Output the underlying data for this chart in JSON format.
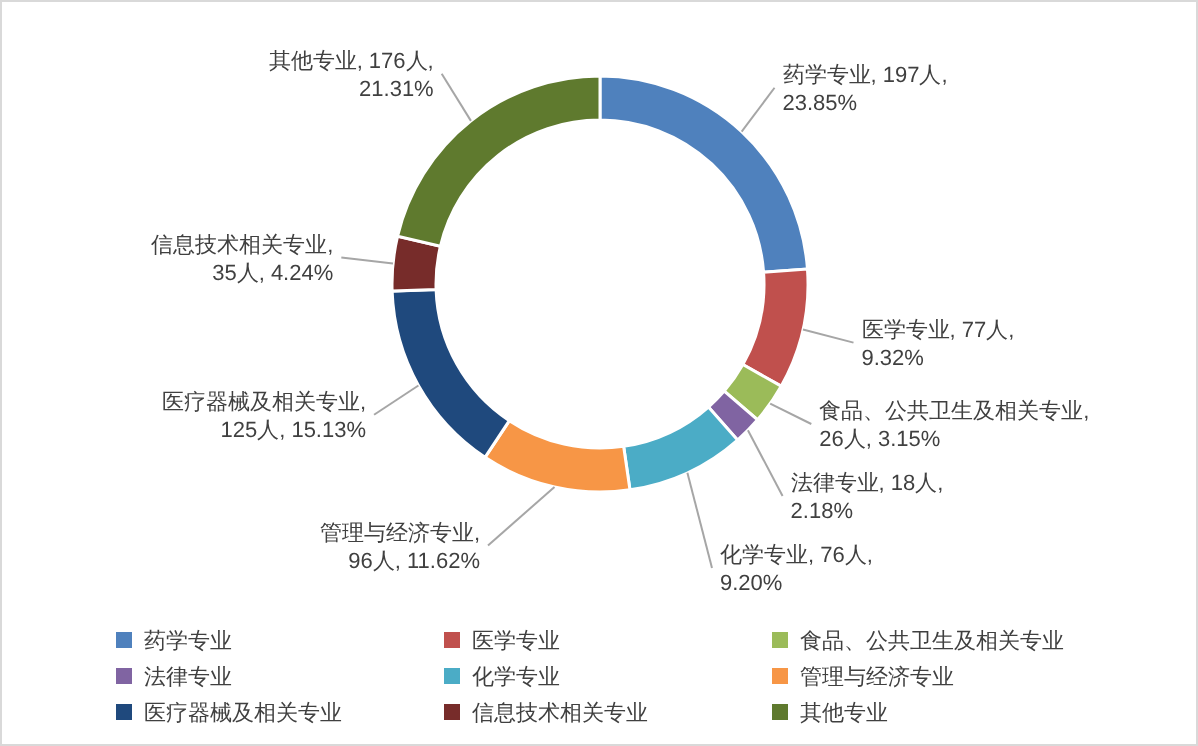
{
  "chart_data": {
    "type": "donut",
    "legend": "bottom",
    "categories": [
      "药学专业",
      "医学专业",
      "食品、公共卫生及相关专业",
      "法律专业",
      "化学专业",
      "管理与经济专业",
      "医疗器械及相关专业",
      "信息技术相关专业",
      "其他专业"
    ],
    "values": [
      197,
      77,
      26,
      18,
      76,
      96,
      125,
      35,
      176
    ],
    "colors": [
      "#4f81bd",
      "#c0504d",
      "#9bbb59",
      "#8064a2",
      "#4bacc6",
      "#f79646",
      "#1f497d",
      "#772c2a",
      "#5f7a2e"
    ],
    "value_labels": [
      "药学专业, 197人, 23.85%",
      "医学专业, 77人, 9.32%",
      "食品、公共卫生及相关专业, 26人, 3.15%",
      "法律专业, 18人, 2.18%",
      "化学专业, 76人, 9.20%",
      "管理与经济专业, 96人, 11.62%",
      "医疗器械及相关专业, 125人, 15.13%",
      "信息技术相关专业, 35人, 4.24%",
      "其他专业, 176人, 21.31%"
    ]
  }
}
